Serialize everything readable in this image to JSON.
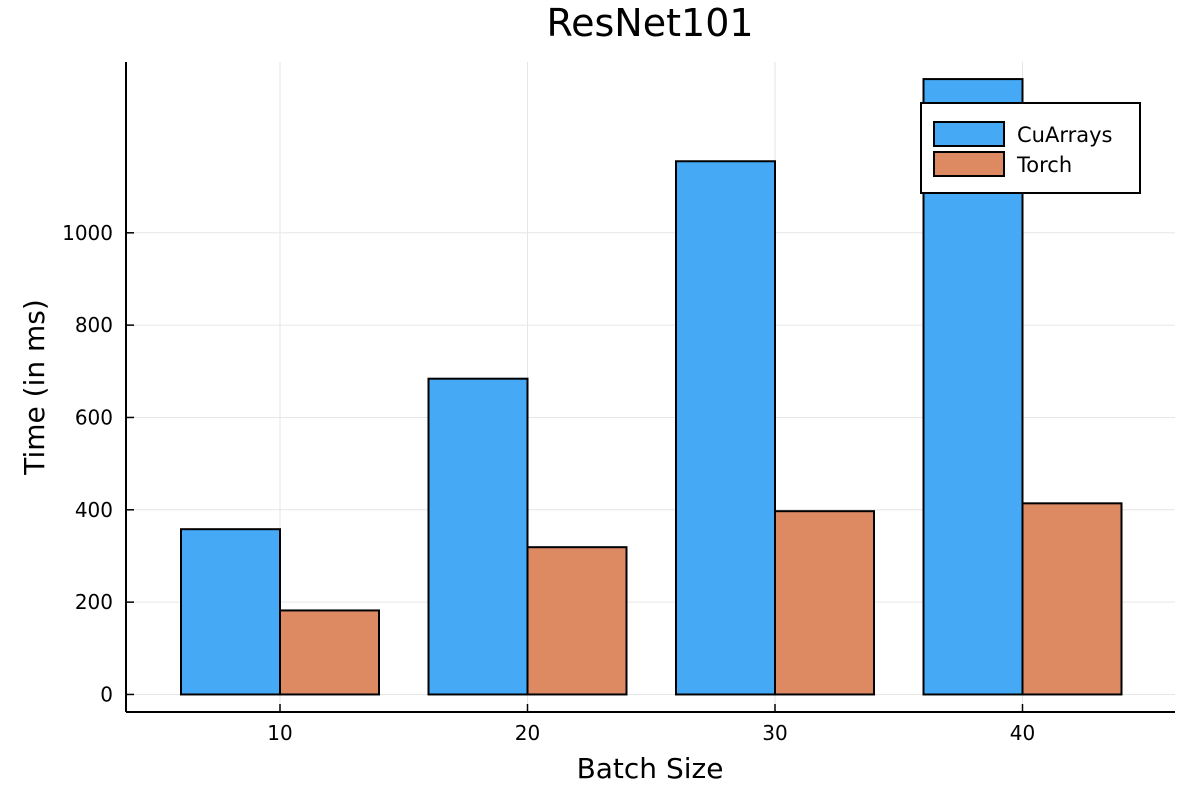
{
  "chart_data": {
    "type": "bar",
    "title": "ResNet101",
    "xlabel": "Batch Size",
    "ylabel": "Time (in ms)",
    "categories": [
      "10",
      "20",
      "30",
      "40"
    ],
    "x_ticks": [
      "10",
      "20",
      "30",
      "40"
    ],
    "y_ticks": [
      "0",
      "200",
      "400",
      "600",
      "800",
      "1000"
    ],
    "ylim": [
      -38,
      1370
    ],
    "grid": true,
    "legend_position": "top-right",
    "series": [
      {
        "name": "CuArrays",
        "color": "#45a9f5",
        "values": [
          358,
          684,
          1155,
          1333
        ]
      },
      {
        "name": "Torch",
        "color": "#dd8a63",
        "values": [
          182,
          319,
          397,
          414
        ]
      }
    ]
  }
}
